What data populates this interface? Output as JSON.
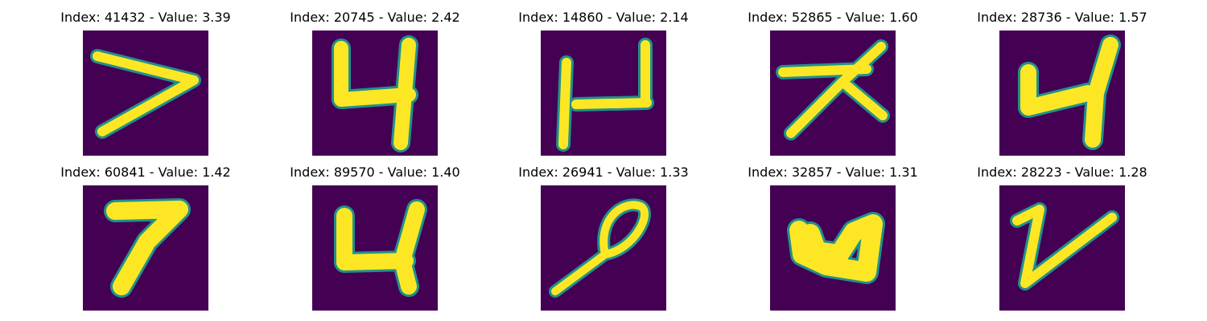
{
  "colors": {
    "background": "#440154",
    "stroke_core": "#fde725",
    "stroke_edge": "#21918c",
    "stroke_mid": "#5ec962"
  },
  "panels": [
    {
      "title": "Index: 41432 - Value: 3.39",
      "glyph": "seven-like stroke shaped like >"
    },
    {
      "title": "Index: 20745 - Value: 2.42",
      "glyph": "four (open top)"
    },
    {
      "title": "Index: 14860 - Value: 2.14",
      "glyph": "u-shape with crossbar"
    },
    {
      "title": "Index: 52865 - Value: 1.60",
      "glyph": "star-like cross stroke"
    },
    {
      "title": "Index: 28736 - Value: 1.57",
      "glyph": "four (open top)"
    },
    {
      "title": "Index: 60841 - Value: 1.42",
      "glyph": "seven"
    },
    {
      "title": "Index: 89570 - Value: 1.40",
      "glyph": "four (open top)"
    },
    {
      "title": "Index: 26941 - Value: 1.33",
      "glyph": "loop with long tail"
    },
    {
      "title": "Index: 32857 - Value: 1.31",
      "glyph": "thick u-shape"
    },
    {
      "title": "Index: 28223 - Value: 1.28",
      "glyph": "v-shape"
    }
  ]
}
